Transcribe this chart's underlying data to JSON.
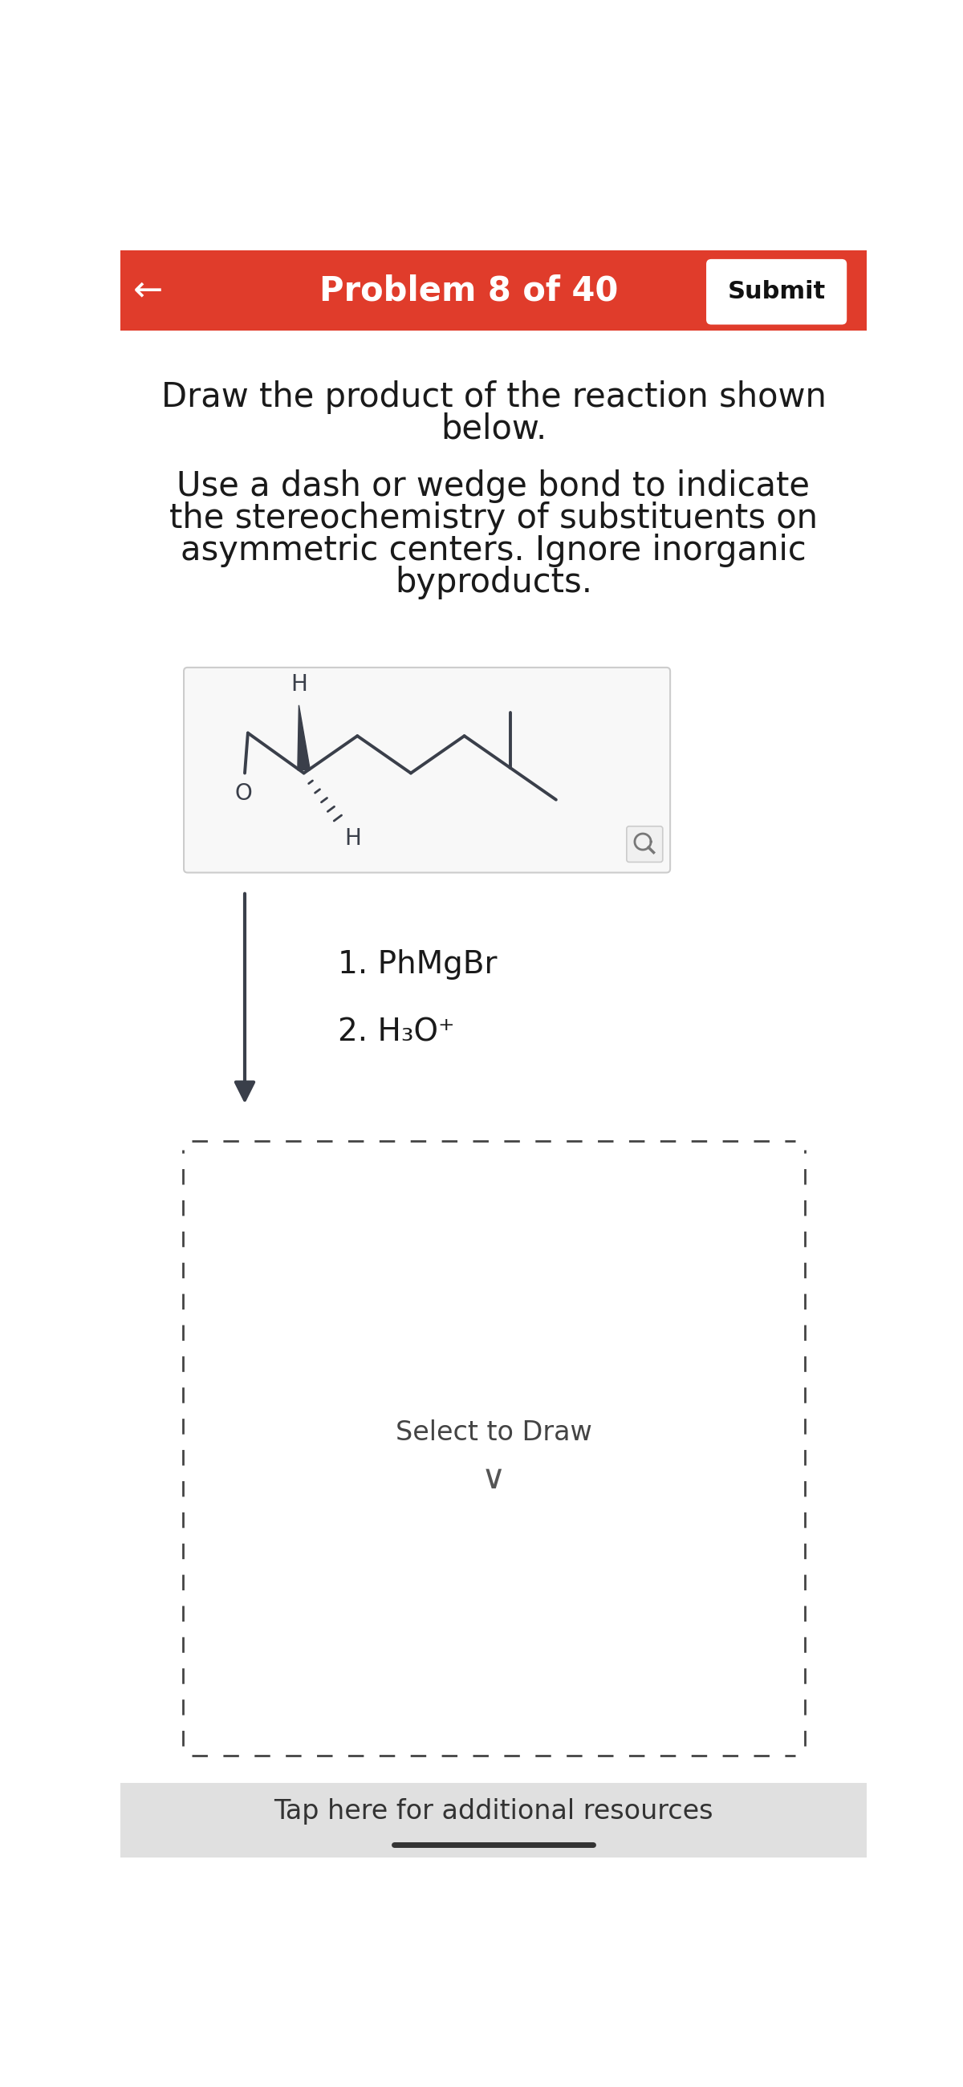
{
  "bg_color": "#ffffff",
  "header_color": "#e03c2b",
  "header_text": "Problem 8 of 40",
  "header_text_color": "#ffffff",
  "header_fontsize": 30,
  "submit_btn_text": "Submit",
  "submit_btn_color": "#ffffff",
  "submit_btn_text_color": "#111111",
  "back_arrow": "←",
  "instruction_line1": "Draw the product of the reaction shown",
  "instruction_line2": "below.",
  "instruction_line3": "Use a dash or wedge bond to indicate",
  "instruction_line4": "the stereochemistry of substituents on",
  "instruction_line5": "asymmetric centers. Ignore inorganic",
  "instruction_line6": "byproducts.",
  "reagent_line1": "1. PhMgBr",
  "reagent_line2": "2. H₃O⁺",
  "select_to_draw": "Select to Draw",
  "tap_resources": "Tap here for additional resources",
  "tap_bg_color": "#e0e0e0",
  "dashed_box_color": "#444444",
  "bond_color": "#3a3f4a",
  "instruction_fontsize": 30,
  "reagent_fontsize": 28
}
